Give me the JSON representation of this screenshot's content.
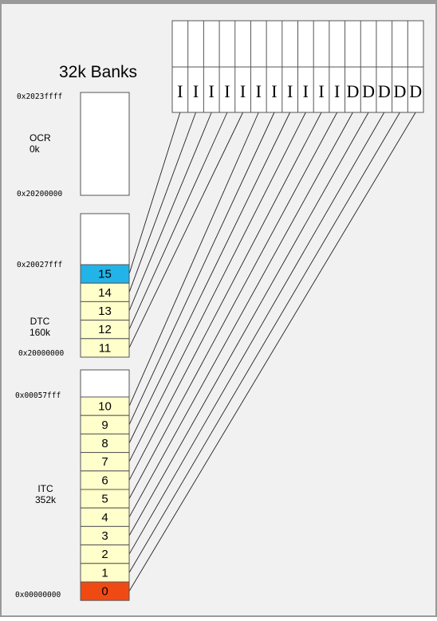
{
  "title": "32k Banks",
  "colors": {
    "bank_fill": "#ffffcc",
    "bank_15_fill": "#22b4e8",
    "bank_0_fill": "#f04a14",
    "empty_fill": "#ffffff",
    "border": "#555555",
    "background": "#f1f1f1"
  },
  "regions": [
    {
      "id": "ocr",
      "name": "OCR",
      "size": "0k",
      "addr_top": "0x2023ffff",
      "addr_bottom": "0x20200000",
      "banks": []
    },
    {
      "id": "dtc",
      "name": "DTC",
      "size": "160k",
      "addr_top": "0x20027fff",
      "addr_bottom": "0x20000000",
      "banks": [
        "15",
        "14",
        "13",
        "12",
        "11"
      ]
    },
    {
      "id": "itc",
      "name": "ITC",
      "size": "352k",
      "addr_top": "0x00057fff",
      "addr_bottom": "0x00000000",
      "banks": [
        "10",
        "9",
        "8",
        "7",
        "6",
        "5",
        "4",
        "3",
        "2",
        "1",
        "0"
      ]
    }
  ],
  "ports": [
    "I",
    "I",
    "I",
    "I",
    "I",
    "I",
    "I",
    "I",
    "I",
    "I",
    "I",
    "D",
    "D",
    "D",
    "D",
    "D"
  ]
}
